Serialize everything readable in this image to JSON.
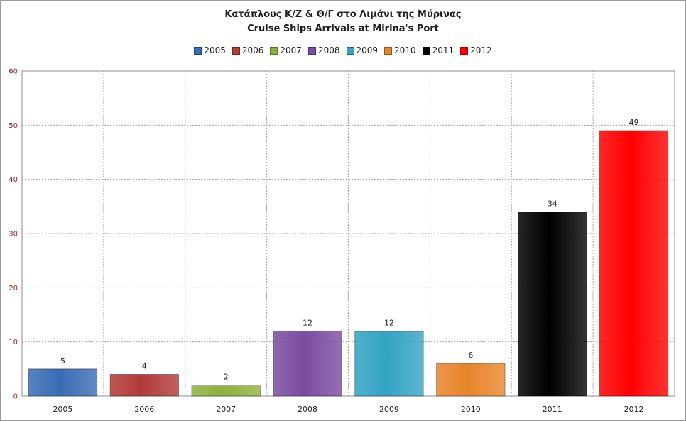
{
  "chart_data": {
    "type": "bar",
    "title": "Κατάπλους Κ/Ζ & Θ/Γ στο Λιμάνι της Μύρινας",
    "subtitle": "Cruise Ships Arrivals at Mirina's Port",
    "categories": [
      "2005",
      "2006",
      "2007",
      "2008",
      "2009",
      "2010",
      "2011",
      "2012"
    ],
    "values": [
      5,
      4,
      2,
      12,
      12,
      6,
      34,
      49
    ],
    "colors": [
      "#3a6cb4",
      "#b23a38",
      "#8cb23c",
      "#7a4ca0",
      "#33a3c4",
      "#e8842a",
      "#000000",
      "#ff0000"
    ],
    "legend": {
      "position": "top",
      "entries": [
        "2005",
        "2006",
        "2007",
        "2008",
        "2009",
        "2010",
        "2011",
        "2012"
      ]
    },
    "yticks": [
      "0",
      "10",
      "20",
      "30",
      "40",
      "50",
      "60"
    ],
    "ylim": [
      0,
      60
    ],
    "grid": true,
    "xlabel": "",
    "ylabel": ""
  }
}
